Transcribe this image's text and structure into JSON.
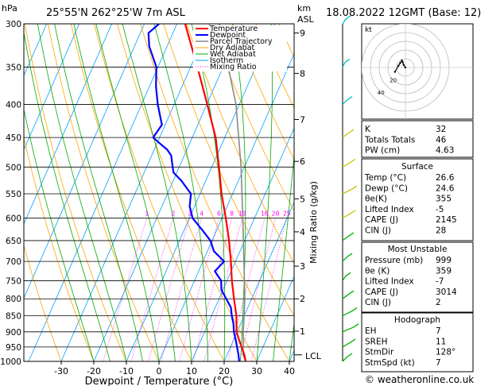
{
  "header": {
    "location": "25°55'N  262°25'W  7m  ASL",
    "datetime": "18.08.2022  12GMT  (Base: 12)",
    "pressure_unit": "hPa",
    "height_unit_1": "km",
    "height_unit_2": "ASL",
    "mixing_ratio_label": "Mixing Ratio (g/kg)",
    "lcl_label": "LCL",
    "footer": "© weatheronline.co.uk"
  },
  "colors": {
    "temperature": "#ff0000",
    "dewpoint": "#0000ff",
    "parcel": "#888888",
    "dry_adiabat": "#ffa500",
    "wet_adiabat": "#00aa00",
    "isotherm": "#00a0ff",
    "mixing_ratio": "#ff00ff"
  },
  "chart_data": {
    "type": "line",
    "title": "25°55'N  262°25'W  7m  ASL",
    "xlabel": "Dewpoint / Temperature (°C)",
    "ylabel": "hPa",
    "y_scale": "log (pressure)",
    "xlim": [
      -35,
      40
    ],
    "ylim": [
      1000,
      300
    ],
    "x_ticks": [
      -30,
      -20,
      -10,
      0,
      10,
      20,
      30,
      40
    ],
    "pressure_levels": [
      300,
      350,
      400,
      450,
      500,
      550,
      600,
      650,
      700,
      750,
      800,
      850,
      900,
      950,
      1000
    ],
    "height_km_ticks": [
      {
        "label": "9",
        "p": 310
      },
      {
        "label": "8",
        "p": 358
      },
      {
        "label": "7",
        "p": 422
      },
      {
        "label": "6",
        "p": 490
      },
      {
        "label": "5",
        "p": 560
      },
      {
        "label": "4",
        "p": 630
      },
      {
        "label": "3",
        "p": 712
      },
      {
        "label": "2",
        "p": 800
      },
      {
        "label": "1",
        "p": 898
      }
    ],
    "lcl_pressure": 977,
    "mixing_ratio_lines": [
      "1",
      "2",
      "3",
      "4",
      "6",
      "8",
      "10",
      "16",
      "20",
      "25"
    ],
    "legend": [
      "Temperature",
      "Dewpoint",
      "Parcel Trajectory",
      "Dry Adiabat",
      "Wet Adiabat",
      "Isotherm",
      "Mixing Ratio"
    ],
    "series": [
      {
        "name": "Temperature",
        "p": [
          1000,
          975,
          950,
          925,
          900,
          850,
          800,
          750,
          700,
          650,
          600,
          550,
          500,
          450,
          400,
          350,
          300
        ],
        "t": [
          26.6,
          25.2,
          23.4,
          21.6,
          19.8,
          17.6,
          14.6,
          11.5,
          8.6,
          5.2,
          1.2,
          -3.4,
          -7.8,
          -12.8,
          -19.8,
          -27.9,
          -37.5
        ]
      },
      {
        "name": "Dewpoint",
        "p": [
          1000,
          975,
          950,
          925,
          900,
          875,
          850,
          825,
          800,
          775,
          750,
          725,
          700,
          675,
          650,
          625,
          600,
          575,
          550,
          525,
          510,
          500,
          490,
          480,
          470,
          460,
          450,
          430,
          400,
          375,
          350,
          325,
          310,
          300
        ],
        "t": [
          24.6,
          23.4,
          22.0,
          20.6,
          19.0,
          17.8,
          16.2,
          14.8,
          12.2,
          9.5,
          8.2,
          5.0,
          6.5,
          2.0,
          -0.5,
          -4.6,
          -9.0,
          -11.5,
          -12.8,
          -17.5,
          -21.0,
          -22.0,
          -23.0,
          -24.0,
          -26.0,
          -29.0,
          -32.0,
          -31.0,
          -35.0,
          -38.0,
          -40.5,
          -45.5,
          -47.5,
          -45.5
        ]
      },
      {
        "name": "Parcel Trajectory",
        "p": [
          1000,
          977,
          900,
          800,
          700,
          600,
          500,
          400,
          300
        ],
        "t": [
          26.6,
          24.9,
          21.9,
          17.9,
          12.6,
          6.4,
          -1.0,
          -11.0,
          -27.0
        ]
      }
    ]
  },
  "hodograph": {
    "label": "kt",
    "ring_labels": [
      "20",
      "40"
    ],
    "points_kt": [
      [
        0,
        0
      ],
      [
        -2,
        3
      ],
      [
        -3,
        6
      ],
      [
        -4,
        8
      ],
      [
        -6,
        5
      ],
      [
        -8,
        2
      ],
      [
        -12,
        -5
      ]
    ]
  },
  "indices": {
    "top": [
      {
        "label": "K",
        "value": "32"
      },
      {
        "label": "Totals Totals",
        "value": "46"
      },
      {
        "label": "PW (cm)",
        "value": "4.63"
      }
    ],
    "surface": {
      "title": "Surface",
      "rows": [
        {
          "label": "Temp (°C)",
          "value": "26.6"
        },
        {
          "label": "Dewp (°C)",
          "value": "24.6"
        },
        {
          "label": "θe(K)",
          "value": "355"
        },
        {
          "label": "Lifted Index",
          "value": "-5"
        },
        {
          "label": "CAPE (J)",
          "value": "2145"
        },
        {
          "label": "CIN (J)",
          "value": "28"
        }
      ]
    },
    "most_unstable": {
      "title": "Most Unstable",
      "rows": [
        {
          "label": "Pressure (mb)",
          "value": "999"
        },
        {
          "label": "θe (K)",
          "value": "359"
        },
        {
          "label": "Lifted Index",
          "value": "-7"
        },
        {
          "label": "CAPE (J)",
          "value": "3014"
        },
        {
          "label": "CIN (J)",
          "value": "2"
        }
      ]
    },
    "hodograph_box": {
      "title": "Hodograph",
      "rows": [
        {
          "label": "EH",
          "value": "7"
        },
        {
          "label": "SREH",
          "value": "11"
        },
        {
          "label": "StmDir",
          "value": "128°"
        },
        {
          "label": "StmSpd (kt)",
          "value": "7"
        }
      ]
    }
  }
}
